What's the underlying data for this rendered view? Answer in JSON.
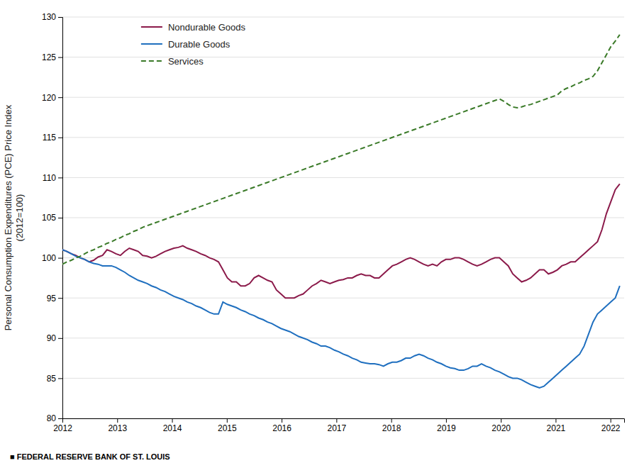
{
  "chart_data": {
    "type": "line",
    "ylabel": "Personal Consumption Expenditures (PCE) Price Index\n(2012=100)",
    "footer": "■  FEDERAL RESERVE BANK OF ST. LOUIS",
    "xlim": [
      2012.0,
      2022.25
    ],
    "xticks": [
      2012,
      2013,
      2014,
      2015,
      2016,
      2017,
      2018,
      2019,
      2020,
      2021,
      2022
    ],
    "ylim": [
      80,
      130
    ],
    "yticks": [
      80,
      85,
      90,
      95,
      100,
      105,
      110,
      115,
      120,
      125,
      130
    ],
    "grid": true,
    "legend": "upper left",
    "x": [
      2012,
      2012.08136,
      2012.16272,
      2012.24408,
      2012.32544,
      2012.4068,
      2012.48816,
      2012.56952,
      2012.65088,
      2012.73224,
      2012.8136,
      2012.89496,
      2012.97632,
      2013.05768,
      2013.13904,
      2013.2204,
      2013.30176,
      2013.38312,
      2013.46448,
      2013.54584,
      2013.6272,
      2013.70856,
      2013.78992,
      2013.87128,
      2013.95264,
      2014.034,
      2014.11536,
      2014.19672,
      2014.27808,
      2014.35944,
      2014.4408,
      2014.52216,
      2014.60352,
      2014.68488,
      2014.76624,
      2014.8476,
      2014.92896,
      2015.01032,
      2015.09168,
      2015.17304,
      2015.2544,
      2015.33576,
      2015.41712,
      2015.49848,
      2015.57984,
      2015.6612,
      2015.74256,
      2015.82392,
      2015.90528,
      2015.98664,
      2016.068,
      2016.14936,
      2016.23072,
      2016.31208,
      2016.39344,
      2016.4748,
      2016.55616,
      2016.63752,
      2016.71888,
      2016.80024,
      2016.8816,
      2016.96296,
      2017.04432,
      2017.12568,
      2017.20704,
      2017.2884,
      2017.36976,
      2017.45112,
      2017.53248,
      2017.61384,
      2017.6952,
      2017.77656,
      2017.85792,
      2017.93928,
      2018.02064,
      2018.102,
      2018.18336,
      2018.26472,
      2018.34608,
      2018.42744,
      2018.5088,
      2018.59016,
      2018.67152,
      2018.75288,
      2018.83424,
      2018.9156,
      2018.99696,
      2019.07832,
      2019.15968,
      2019.24104,
      2019.3224,
      2019.40376,
      2019.48512,
      2019.56648,
      2019.64784,
      2019.7292,
      2019.81056,
      2019.89192,
      2019.97328,
      2020.05464,
      2020.136,
      2020.21736,
      2020.29872,
      2020.38008,
      2020.46144,
      2020.5428,
      2020.62416,
      2020.70552,
      2020.78688,
      2020.86824,
      2020.9496,
      2021.03096,
      2021.11232,
      2021.19368,
      2021.27504,
      2021.3564,
      2021.43776,
      2021.51912,
      2021.60048,
      2021.68184,
      2021.7632,
      2021.84456,
      2021.92592,
      2022.00728,
      2022.08864,
      2022.17
    ],
    "series": [
      {
        "name": "Nondurable Goods",
        "color": "#8B1A4A",
        "line_style": "solid",
        "values": [
          101.0,
          100.8,
          100.5,
          100.3,
          100.0,
          99.8,
          99.5,
          99.7,
          100.1,
          100.3,
          101.0,
          100.8,
          100.5,
          100.3,
          100.8,
          101.2,
          101.0,
          100.8,
          100.3,
          100.2,
          100.0,
          100.2,
          100.5,
          100.8,
          101.0,
          101.2,
          101.3,
          101.5,
          101.2,
          101.0,
          100.8,
          100.5,
          100.3,
          100.0,
          99.8,
          99.5,
          98.5,
          97.5,
          97.0,
          97.0,
          96.5,
          96.5,
          96.8,
          97.5,
          97.8,
          97.5,
          97.2,
          97.0,
          96.0,
          95.5,
          95.0,
          95.0,
          95.0,
          95.3,
          95.5,
          96.0,
          96.5,
          96.8,
          97.2,
          97.0,
          96.8,
          97.0,
          97.2,
          97.3,
          97.5,
          97.5,
          97.8,
          98.0,
          97.8,
          97.8,
          97.5,
          97.5,
          98.0,
          98.5,
          99.0,
          99.2,
          99.5,
          99.8,
          100.0,
          99.8,
          99.5,
          99.2,
          99.0,
          99.2,
          99.0,
          99.5,
          99.8,
          99.8,
          100.0,
          100.0,
          99.8,
          99.5,
          99.2,
          99.0,
          99.2,
          99.5,
          99.8,
          100.0,
          100.0,
          99.5,
          99.0,
          98.0,
          97.5,
          97.0,
          97.2,
          97.5,
          98.0,
          98.5,
          98.5,
          98.0,
          98.2,
          98.5,
          99.0,
          99.2,
          99.5,
          99.5,
          100.0,
          100.5,
          101.0,
          101.5,
          102.0,
          103.5,
          105.5,
          107.0,
          108.5,
          109.2
        ]
      },
      {
        "name": "Durable Goods",
        "color": "#1F6FBF",
        "line_style": "solid",
        "values": [
          101.0,
          100.8,
          100.5,
          100.2,
          100.0,
          99.8,
          99.5,
          99.3,
          99.2,
          99.0,
          99.0,
          99.0,
          98.8,
          98.5,
          98.2,
          97.8,
          97.5,
          97.2,
          97.0,
          96.8,
          96.5,
          96.3,
          96.0,
          95.8,
          95.5,
          95.2,
          95.0,
          94.8,
          94.5,
          94.3,
          94.0,
          93.8,
          93.5,
          93.2,
          93.0,
          93.0,
          94.5,
          94.2,
          94.0,
          93.8,
          93.5,
          93.3,
          93.0,
          92.8,
          92.5,
          92.3,
          92.0,
          91.8,
          91.5,
          91.2,
          91.0,
          90.8,
          90.5,
          90.2,
          90.0,
          89.8,
          89.5,
          89.3,
          89.0,
          89.0,
          88.8,
          88.5,
          88.3,
          88.0,
          87.8,
          87.5,
          87.3,
          87.0,
          86.9,
          86.8,
          86.8,
          86.7,
          86.5,
          86.8,
          87.0,
          87.0,
          87.2,
          87.5,
          87.5,
          87.8,
          88.0,
          87.8,
          87.5,
          87.3,
          87.0,
          86.8,
          86.5,
          86.3,
          86.2,
          86.0,
          86.0,
          86.2,
          86.5,
          86.5,
          86.8,
          86.5,
          86.3,
          86.0,
          85.8,
          85.5,
          85.2,
          85.0,
          85.0,
          84.8,
          84.5,
          84.2,
          84.0,
          83.8,
          84.0,
          84.5,
          85.0,
          85.5,
          86.0,
          86.5,
          87.0,
          87.5,
          88.0,
          89.0,
          90.5,
          92.0,
          93.0,
          93.5,
          94.0,
          94.5,
          95.0,
          96.5
        ]
      },
      {
        "name": "Services",
        "color": "#3A7A28",
        "line_style": "dashed",
        "values": [
          99.2,
          99.5,
          99.7,
          100.0,
          100.2,
          100.5,
          100.8,
          101.0,
          101.3,
          101.5,
          101.8,
          102.0,
          102.3,
          102.5,
          102.8,
          103.0,
          103.3,
          103.5,
          103.8,
          104.0,
          104.2,
          104.4,
          104.6,
          104.8,
          105.0,
          105.2,
          105.4,
          105.6,
          105.8,
          106.0,
          106.2,
          106.4,
          106.6,
          106.8,
          107.0,
          107.2,
          107.4,
          107.6,
          107.8,
          108.0,
          108.2,
          108.4,
          108.6,
          108.8,
          109.0,
          109.2,
          109.4,
          109.6,
          109.8,
          110.0,
          110.2,
          110.4,
          110.6,
          110.8,
          111.0,
          111.2,
          111.4,
          111.6,
          111.8,
          112.0,
          112.2,
          112.4,
          112.6,
          112.8,
          113.0,
          113.2,
          113.4,
          113.6,
          113.8,
          114.0,
          114.2,
          114.4,
          114.6,
          114.8,
          115.0,
          115.2,
          115.4,
          115.6,
          115.8,
          116.0,
          116.2,
          116.4,
          116.6,
          116.8,
          117.0,
          117.2,
          117.4,
          117.6,
          117.8,
          118.0,
          118.2,
          118.4,
          118.6,
          118.8,
          119.0,
          119.2,
          119.4,
          119.6,
          119.8,
          119.5,
          119.1,
          118.8,
          118.7,
          118.8,
          119.0,
          119.1,
          119.3,
          119.5,
          119.7,
          119.9,
          120.1,
          120.3,
          120.8,
          121.1,
          121.3,
          121.6,
          121.8,
          122.1,
          122.3,
          122.6,
          123.3,
          124.3,
          125.3,
          126.3,
          127.0,
          127.8
        ]
      }
    ]
  }
}
